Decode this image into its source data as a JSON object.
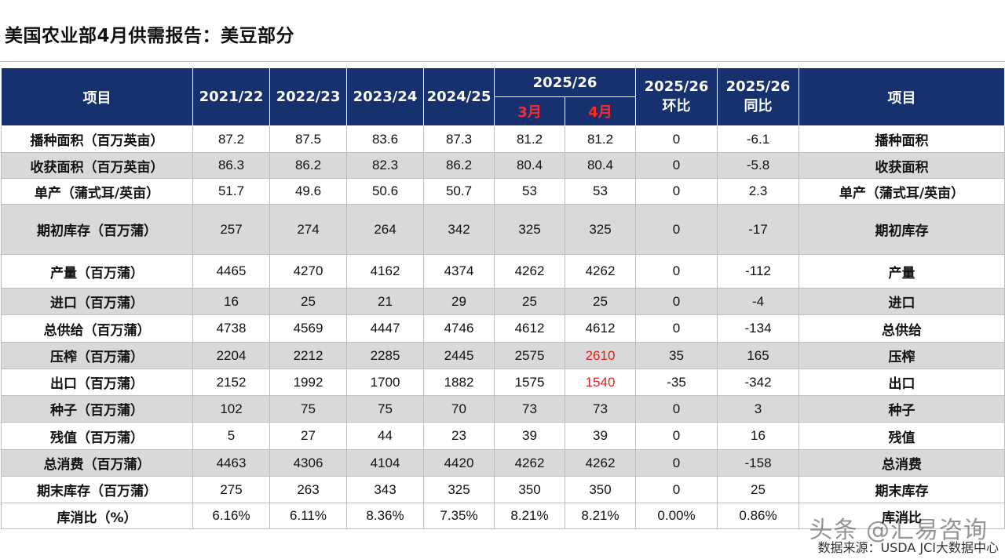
{
  "title": "美国农业部4月供需报告：美豆部分",
  "header": {
    "item": "项目",
    "years": [
      "2021/22",
      "2022/23",
      "2023/24",
      "2024/25"
    ],
    "group": "2025/26",
    "months": [
      "3月",
      "4月"
    ],
    "mom": [
      "2025/26",
      "环比"
    ],
    "yoy": [
      "2025/26",
      "同比"
    ],
    "item_right": "项目"
  },
  "rows": [
    {
      "label": "播种面积（百万英亩）",
      "v": [
        "87.2",
        "87.5",
        "83.6",
        "87.3",
        "81.2",
        "81.2",
        "0",
        "-6.1"
      ],
      "right": "播种面积",
      "shade": "w"
    },
    {
      "label": "收获面积（百万英亩）",
      "v": [
        "86.3",
        "86.2",
        "82.3",
        "86.2",
        "80.4",
        "80.4",
        "0",
        "-5.8"
      ],
      "right": "收获面积",
      "shade": "g"
    },
    {
      "label": "单产（蒲式耳/英亩）",
      "v": [
        "51.7",
        "49.6",
        "50.6",
        "50.7",
        "53",
        "53",
        "0",
        "2.3"
      ],
      "right": "单产（蒲式耳/英亩）",
      "shade": "w"
    },
    {
      "label": "期初库存（百万蒲）",
      "v": [
        "257",
        "274",
        "264",
        "342",
        "325",
        "325",
        "0",
        "-17"
      ],
      "right": "期初库存",
      "shade": "g"
    },
    {
      "label": "产量（百万蒲）",
      "v": [
        "4465",
        "4270",
        "4162",
        "4374",
        "4262",
        "4262",
        "0",
        "-112"
      ],
      "right": "产量",
      "shade": "w"
    },
    {
      "label": "进口（百万蒲）",
      "v": [
        "16",
        "25",
        "21",
        "29",
        "25",
        "25",
        "0",
        "-4"
      ],
      "right": "进口",
      "shade": "g"
    },
    {
      "label": "总供给（百万蒲）",
      "v": [
        "4738",
        "4569",
        "4447",
        "4746",
        "4612",
        "4612",
        "0",
        "-134"
      ],
      "right": "总供给",
      "shade": "w"
    },
    {
      "label": "压榨（百万蒲）",
      "v": [
        "2204",
        "2212",
        "2285",
        "2445",
        "2575",
        "2610",
        "35",
        "165"
      ],
      "right": "压榨",
      "shade": "g"
    },
    {
      "label": "出口（百万蒲）",
      "v": [
        "2152",
        "1992",
        "1700",
        "1882",
        "1575",
        "1540",
        "-35",
        "-342"
      ],
      "right": "出口",
      "shade": "w"
    },
    {
      "label": "种子（百万蒲）",
      "v": [
        "102",
        "75",
        "75",
        "70",
        "73",
        "73",
        "0",
        "3"
      ],
      "right": "种子",
      "shade": "g"
    },
    {
      "label": "残值（百万蒲）",
      "v": [
        "5",
        "27",
        "44",
        "23",
        "39",
        "39",
        "0",
        "16"
      ],
      "right": "残值",
      "shade": "w"
    },
    {
      "label": "总消费（百万蒲）",
      "v": [
        "4463",
        "4306",
        "4104",
        "4420",
        "4262",
        "4262",
        "0",
        "-158"
      ],
      "right": "总消费",
      "shade": "g"
    },
    {
      "label": "期末库存（百万蒲）",
      "v": [
        "275",
        "263",
        "343",
        "325",
        "350",
        "350",
        "0",
        "25"
      ],
      "right": "期末库存",
      "shade": "w"
    },
    {
      "label": "库消比（%）",
      "v": [
        "6.16%",
        "6.11%",
        "8.36%",
        "7.35%",
        "8.21%",
        "8.21%",
        "0.00%",
        "0.86%"
      ],
      "right": "库消比",
      "shade": "w"
    }
  ],
  "highlight": {
    "color": "#e02020"
  },
  "source": "数据来源：USDA  JCI大数据中心",
  "watermark": "头条 @汇易咨询"
}
